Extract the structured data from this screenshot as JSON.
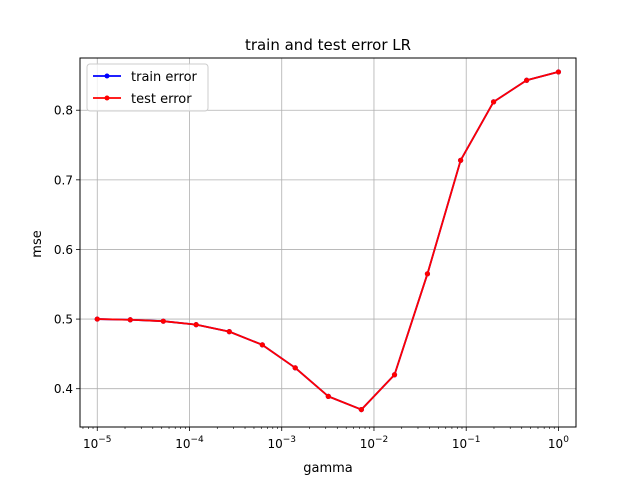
{
  "chart_data": {
    "type": "line",
    "title": "train and test error LR",
    "xlabel": "gamma",
    "ylabel": "mse",
    "xscale": "log",
    "xlim": [
      6.5e-06,
      1.55
    ],
    "ylim": [
      0.345,
      0.875
    ],
    "grid": true,
    "legend_position": "top-left",
    "x": [
      1e-05,
      2.28e-05,
      5.2e-05,
      0.000118,
      0.00027,
      0.000616,
      0.0014,
      0.0032,
      0.0073,
      0.0167,
      0.038,
      0.087,
      0.198,
      0.452,
      1.0
    ],
    "series": [
      {
        "name": "train error",
        "color": "#0000ff",
        "values": [
          0.5,
          0.499,
          0.497,
          0.492,
          0.482,
          0.463,
          0.43,
          0.389,
          0.37,
          0.42,
          0.565,
          0.728,
          0.812,
          0.843,
          0.855
        ]
      },
      {
        "name": "test error",
        "color": "#ff0000",
        "values": [
          0.5,
          0.499,
          0.497,
          0.492,
          0.482,
          0.463,
          0.43,
          0.389,
          0.37,
          0.42,
          0.565,
          0.728,
          0.812,
          0.843,
          0.855
        ]
      }
    ],
    "yticks": [
      {
        "value": 0.4,
        "label": "0.4"
      },
      {
        "value": 0.5,
        "label": "0.5"
      },
      {
        "value": 0.6,
        "label": "0.6"
      },
      {
        "value": 0.7,
        "label": "0.7"
      },
      {
        "value": 0.8,
        "label": "0.8"
      }
    ],
    "xticks": [
      {
        "value": 1e-05,
        "base": "10",
        "exp": "−5"
      },
      {
        "value": 0.0001,
        "base": "10",
        "exp": "−4"
      },
      {
        "value": 0.001,
        "base": "10",
        "exp": "−3"
      },
      {
        "value": 0.01,
        "base": "10",
        "exp": "−2"
      },
      {
        "value": 0.1,
        "base": "10",
        "exp": "−1"
      },
      {
        "value": 1,
        "base": "10",
        "exp": "0"
      }
    ]
  }
}
